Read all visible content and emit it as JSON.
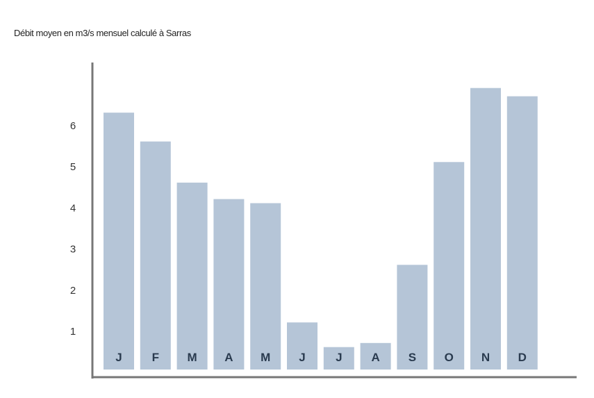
{
  "chart_data": {
    "type": "bar",
    "title": "Débit moyen en m3/s mensuel calculé à Sarras",
    "xlabel": "",
    "ylabel": "",
    "categories": [
      "J",
      "F",
      "M",
      "A",
      "M",
      "J",
      "J",
      "A",
      "S",
      "O",
      "N",
      "D"
    ],
    "values": [
      6.3,
      5.6,
      4.6,
      4.2,
      4.1,
      1.2,
      0.6,
      0.7,
      2.6,
      5.1,
      6.9,
      6.7
    ],
    "yticks": [
      1,
      2,
      3,
      4,
      5,
      6
    ],
    "ylim": [
      0.3,
      7.5
    ],
    "grid": false,
    "legend": "none",
    "colors": {
      "bar": "#b5c5d7",
      "axis": "#777777",
      "label": "#2a3b4f"
    }
  }
}
